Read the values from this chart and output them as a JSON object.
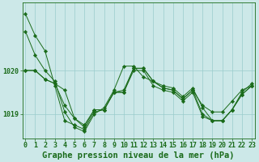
{
  "series": [
    [
      1021.3,
      1020.8,
      1020.45,
      1019.65,
      1018.85,
      1018.75,
      1018.65,
      1019.05,
      1019.1,
      1019.5,
      1019.55,
      1020.05,
      1020.05,
      1019.75,
      1019.6,
      1019.55,
      1019.35,
      1019.55,
      1019.2,
      1019.05,
      1019.05,
      1019.3,
      1019.55,
      1019.65
    ],
    [
      1020.0,
      1020.0,
      1019.8,
      1019.7,
      1019.55,
      1018.9,
      1018.75,
      1019.1,
      1019.1,
      1019.5,
      1019.5,
      1020.05,
      1020.05,
      1019.75,
      1019.6,
      1019.55,
      1019.35,
      1019.55,
      1019.0,
      1018.85,
      1018.85,
      1019.1,
      1019.45,
      1019.65
    ],
    [
      1020.0,
      1020.0,
      1019.8,
      1019.7,
      1019.2,
      1018.9,
      1018.7,
      1019.1,
      1019.1,
      1019.5,
      1019.5,
      1020.0,
      1020.0,
      1019.65,
      1019.55,
      1019.5,
      1019.3,
      1019.5,
      1018.95,
      1018.85,
      1018.85,
      1019.1,
      1019.45,
      1019.65
    ],
    [
      1020.9,
      1020.35,
      1020.0,
      1019.75,
      1019.05,
      1018.7,
      1018.6,
      1019.0,
      1019.15,
      1019.55,
      1020.1,
      1020.1,
      1019.85,
      1019.75,
      1019.65,
      1019.6,
      1019.4,
      1019.6,
      1019.15,
      1018.85,
      1018.85,
      1019.1,
      1019.5,
      1019.7
    ]
  ],
  "x": [
    0,
    1,
    2,
    3,
    4,
    5,
    6,
    7,
    8,
    9,
    10,
    11,
    12,
    13,
    14,
    15,
    16,
    17,
    18,
    19,
    20,
    21,
    22,
    23
  ],
  "xlabels": [
    "0",
    "1",
    "2",
    "3",
    "4",
    "5",
    "6",
    "7",
    "8",
    "9",
    "10",
    "11",
    "12",
    "13",
    "14",
    "15",
    "16",
    "17",
    "18",
    "19",
    "20",
    "21",
    "22",
    "23"
  ],
  "ytick_positions": [
    1019.0,
    1020.0
  ],
  "ytick_labels": [
    "1019",
    "1020"
  ],
  "ylim": [
    1018.45,
    1021.55
  ],
  "xlim": [
    -0.3,
    23.3
  ],
  "line_color": "#1a6b1a",
  "marker_color": "#1a6b1a",
  "bg_color": "#cce8e8",
  "grid_color": "#99cccc",
  "xlabel": "Graphe pression niveau de la mer (hPa)",
  "xlabel_fontsize": 7.5,
  "tick_fontsize": 6,
  "marker_size": 2.2,
  "linewidth": 0.7
}
